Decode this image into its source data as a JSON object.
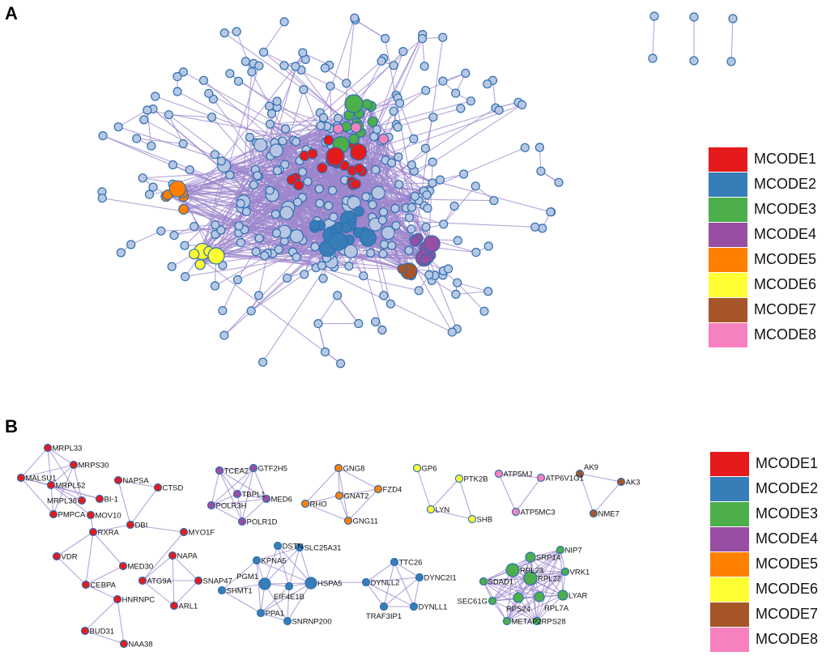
{
  "panels": {
    "a_label": "A",
    "b_label": "B"
  },
  "colors": {
    "edge": "#9c85cc",
    "default_node": "#b7c7e3",
    "node_border": "#2e6fb0"
  },
  "legend": [
    {
      "label": "MCODE1",
      "color": "#e41a1c"
    },
    {
      "label": "MCODE2",
      "color": "#377eb8"
    },
    {
      "label": "MCODE3",
      "color": "#4daf4a"
    },
    {
      "label": "MCODE4",
      "color": "#984ea3"
    },
    {
      "label": "MCODE5",
      "color": "#ff7f00"
    },
    {
      "label": "MCODE6",
      "color": "#ffff33"
    },
    {
      "label": "MCODE7",
      "color": "#a65628"
    },
    {
      "label": "MCODE8",
      "color": "#f781bf"
    }
  ],
  "clusters": [
    {
      "mcode": 1,
      "genes": [
        "MRPL33",
        "MRPS30",
        "MALSU1",
        "MRPL52",
        "MRPL38",
        "BI-1",
        "PMPCA",
        "MOV10",
        "NAPSA",
        "CTSD",
        "DBI",
        "RXRA",
        "MYO1F",
        "VDR",
        "MED30",
        "CEBPA",
        "NAPA",
        "ATG9A",
        "SNAP47",
        "ARL1",
        "HNRNPC",
        "BUD31",
        "NAA38"
      ],
      "edges": [
        [
          "MRPL33",
          "MRPS30"
        ],
        [
          "MRPL33",
          "MALSU1"
        ],
        [
          "MRPL33",
          "MRPL52"
        ],
        [
          "MRPL33",
          "MRPL38"
        ],
        [
          "MRPS30",
          "MALSU1"
        ],
        [
          "MRPS30",
          "MRPL52"
        ],
        [
          "MRPS30",
          "PMPCA"
        ],
        [
          "MRPS30",
          "MRPL38"
        ],
        [
          "MALSU1",
          "MRPL52"
        ],
        [
          "MALSU1",
          "PMPCA"
        ],
        [
          "MALSU1",
          "BI-1"
        ],
        [
          "MRPL52",
          "PMPCA"
        ],
        [
          "MRPL52",
          "MRPL38"
        ],
        [
          "MRPL52",
          "BI-1"
        ],
        [
          "MRPL52",
          "MOV10"
        ],
        [
          "MOV10",
          "RXRA"
        ],
        [
          "NAPSA",
          "CTSD"
        ],
        [
          "NAPSA",
          "DBI"
        ],
        [
          "CTSD",
          "DBI"
        ],
        [
          "DBI",
          "RXRA"
        ],
        [
          "DBI",
          "MYO1F"
        ],
        [
          "MYO1F",
          "ATG9A"
        ],
        [
          "RXRA",
          "VDR"
        ],
        [
          "RXRA",
          "CEBPA"
        ],
        [
          "RXRA",
          "MED30"
        ],
        [
          "VDR",
          "CEBPA"
        ],
        [
          "MED30",
          "CEBPA"
        ],
        [
          "CEBPA",
          "HNRNPC"
        ],
        [
          "HNRNPC",
          "BUD31"
        ],
        [
          "HNRNPC",
          "NAA38"
        ],
        [
          "BUD31",
          "NAA38"
        ],
        [
          "NAPA",
          "ATG9A"
        ],
        [
          "NAPA",
          "SNAP47"
        ],
        [
          "NAPA",
          "ARL1"
        ],
        [
          "ATG9A",
          "SNAP47"
        ],
        [
          "ATG9A",
          "ARL1"
        ],
        [
          "SNAP47",
          "ARL1"
        ]
      ]
    },
    {
      "mcode": 4,
      "genes": [
        "TCEA2",
        "GTF2H5",
        "TBPL1",
        "MED6",
        "POLR3H",
        "POLR1D"
      ],
      "complete": true,
      "edges": []
    },
    {
      "mcode": 5,
      "genes": [
        "GNG8",
        "GNAT2",
        "FZD4",
        "RHO",
        "GNG11"
      ],
      "edges": [
        [
          "GNG8",
          "GNAT2"
        ],
        [
          "GNG8",
          "FZD4"
        ],
        [
          "GNG8",
          "RHO"
        ],
        [
          "GNG8",
          "GNG11"
        ],
        [
          "GNAT2",
          "FZD4"
        ],
        [
          "GNAT2",
          "RHO"
        ],
        [
          "GNAT2",
          "GNG11"
        ],
        [
          "RHO",
          "GNG11"
        ],
        [
          "FZD4",
          "GNG11"
        ]
      ]
    },
    {
      "mcode": 6,
      "genes": [
        "GP6",
        "PTK2B",
        "LYN",
        "SHB"
      ],
      "edges": [
        [
          "GP6",
          "LYN"
        ],
        [
          "PTK2B",
          "LYN"
        ],
        [
          "PTK2B",
          "SHB"
        ],
        [
          "LYN",
          "SHB"
        ]
      ]
    },
    {
      "mcode": 8,
      "genes": [
        "ATP5MJ",
        "ATP6V1G1",
        "ATP5MC3"
      ],
      "complete": true,
      "edges": []
    },
    {
      "mcode": 7,
      "genes": [
        "AK9",
        "AK3",
        "NME7"
      ],
      "complete": true,
      "edges": []
    },
    {
      "mcode": 2,
      "genes": [
        "DSTN",
        "SLC25A31",
        "KPNA5",
        "PGM1",
        "EIF4E1B",
        "HSPA5",
        "SHMT1",
        "PPA1",
        "SNRNP200",
        "DYNLL2",
        "TTC26",
        "DYNC2I1",
        "TRAF3IP1",
        "DYNLL1"
      ],
      "edges": [
        [
          "DSTN",
          "PGM1"
        ],
        [
          "DSTN",
          "EIF4E1B"
        ],
        [
          "DSTN",
          "HSPA5"
        ],
        [
          "SLC25A31",
          "KPNA5"
        ],
        [
          "SLC25A31",
          "PGM1"
        ],
        [
          "SLC25A31",
          "EIF4E1B"
        ],
        [
          "SLC25A31",
          "HSPA5"
        ],
        [
          "KPNA5",
          "SHMT1"
        ],
        [
          "KPNA5",
          "PGM1"
        ],
        [
          "KPNA5",
          "HSPA5"
        ],
        [
          "KPNA5",
          "PPA1"
        ],
        [
          "PGM1",
          "SHMT1"
        ],
        [
          "PGM1",
          "EIF4E1B"
        ],
        [
          "PGM1",
          "HSPA5"
        ],
        [
          "PGM1",
          "PPA1"
        ],
        [
          "PGM1",
          "SNRNP200"
        ],
        [
          "EIF4E1B",
          "HSPA5"
        ],
        [
          "EIF4E1B",
          "PPA1"
        ],
        [
          "EIF4E1B",
          "SNRNP200"
        ],
        [
          "HSPA5",
          "PPA1"
        ],
        [
          "HSPA5",
          "SNRNP200"
        ],
        [
          "SHMT1",
          "PPA1"
        ],
        [
          "PPA1",
          "SNRNP200"
        ],
        [
          "HSPA5",
          "DYNLL2"
        ],
        [
          "DYNLL2",
          "TTC26"
        ],
        [
          "DYNLL2",
          "DYNC2I1"
        ],
        [
          "DYNLL2",
          "TRAF3IP1"
        ],
        [
          "DYNLL2",
          "DYNLL1"
        ],
        [
          "TTC26",
          "DYNC2I1"
        ],
        [
          "TTC26",
          "TRAF3IP1"
        ],
        [
          "TTC26",
          "DYNLL1"
        ],
        [
          "DYNC2I1",
          "TRAF3IP1"
        ],
        [
          "DYNC2I1",
          "DYNLL1"
        ],
        [
          "TRAF3IP1",
          "DYNLL1"
        ]
      ]
    },
    {
      "mcode": 3,
      "genes": [
        "NIP7",
        "SRP14",
        "RPL23",
        "VRK1",
        "RPL22",
        "SDAD1",
        "SEC61G",
        "RPS24",
        "RPL7A",
        "LYAR",
        "METAP2",
        "RPS28"
      ],
      "complete": true,
      "edges": []
    }
  ]
}
